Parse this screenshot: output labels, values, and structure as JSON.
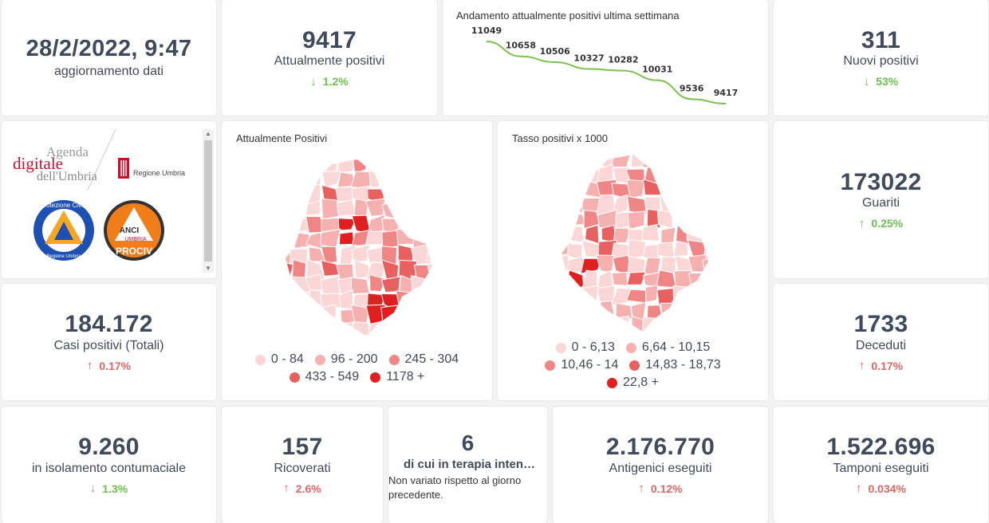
{
  "last_update": {
    "value": "28/2/2022, 9:47",
    "label": "aggiornamento dati"
  },
  "attualmente_positivi": {
    "value": "9417",
    "label": "Attualmente positivi",
    "trend": "1.2%",
    "arrow": "↓"
  },
  "week_trend": {
    "title": "Andamento attualmente positivi ultima settimana",
    "points": [
      {
        "label": "11049",
        "value": 11049
      },
      {
        "label": "10658",
        "value": 10658
      },
      {
        "label": "10506",
        "value": 10506
      },
      {
        "label": "10327",
        "value": 10327
      },
      {
        "label": "10282",
        "value": 10282
      },
      {
        "label": "10031",
        "value": 10031
      },
      {
        "label": "9536",
        "value": 9536
      },
      {
        "label": "9417",
        "value": 9417
      }
    ],
    "color": "#7cc14d"
  },
  "nuovi_positivi": {
    "value": "311",
    "label": "Nuovi positivi",
    "trend": "53%",
    "arrow": "↓"
  },
  "logos": {
    "agenda": {
      "line1": "Agenda",
      "line2": "digitale",
      "line3": "dell'Umbria"
    },
    "regione": {
      "text": "Regione Umbria"
    },
    "protezione": {
      "top": "Protezione Civile",
      "bottom": "Regione Umbria"
    },
    "anci": {
      "top": "ANCI",
      "mid": "UMBRIA",
      "bottom": "PROCIV"
    }
  },
  "map_positivi": {
    "title": "Attualmente Positivi",
    "legend": [
      {
        "label": "0 - 84",
        "color": "#fbd6d6"
      },
      {
        "label": "96 - 200",
        "color": "#f7b0b0"
      },
      {
        "label": "245 - 304",
        "color": "#f08585"
      },
      {
        "label": "433 - 549",
        "color": "#e96060"
      },
      {
        "label": "1178 +",
        "color": "#e02020"
      }
    ]
  },
  "map_tasso": {
    "title": "Tasso positivi x 1000",
    "legend": [
      {
        "label": "0 - 6,13",
        "color": "#fbd6d6"
      },
      {
        "label": "6,64 - 10,15",
        "color": "#f7b0b0"
      },
      {
        "label": "10,46 - 14",
        "color": "#f08585"
      },
      {
        "label": "14,83 - 18,73",
        "color": "#e96060"
      },
      {
        "label": "22,8 +",
        "color": "#e02020"
      }
    ]
  },
  "guariti": {
    "value": "173022",
    "label": "Guariti",
    "trend": "0.25%",
    "arrow": "↑"
  },
  "casi_totali": {
    "value": "184.172",
    "label": "Casi positivi (Totali)",
    "trend": "0.17%",
    "arrow": "↑"
  },
  "deceduti": {
    "value": "1733",
    "label": "Deceduti",
    "trend": "0.17%",
    "arrow": "↑"
  },
  "isolamento": {
    "value": "9.260",
    "label": "in isolamento contumaciale",
    "trend": "1.3%",
    "arrow": "↓"
  },
  "ricoverati": {
    "value": "157",
    "label": "Ricoverati",
    "trend": "2.6%",
    "arrow": "↑"
  },
  "terapia_intensiva": {
    "value": "6",
    "label": "di cui in terapia inten…",
    "note": "Non variato rispetto al giorno precedente."
  },
  "antigenici": {
    "value": "2.176.770",
    "label": "Antigenici eseguiti",
    "trend": "0.12%",
    "arrow": "↑"
  },
  "tamponi": {
    "value": "1.522.696",
    "label": "Tamponi eseguiti",
    "trend": "0.034%",
    "arrow": "↑"
  }
}
